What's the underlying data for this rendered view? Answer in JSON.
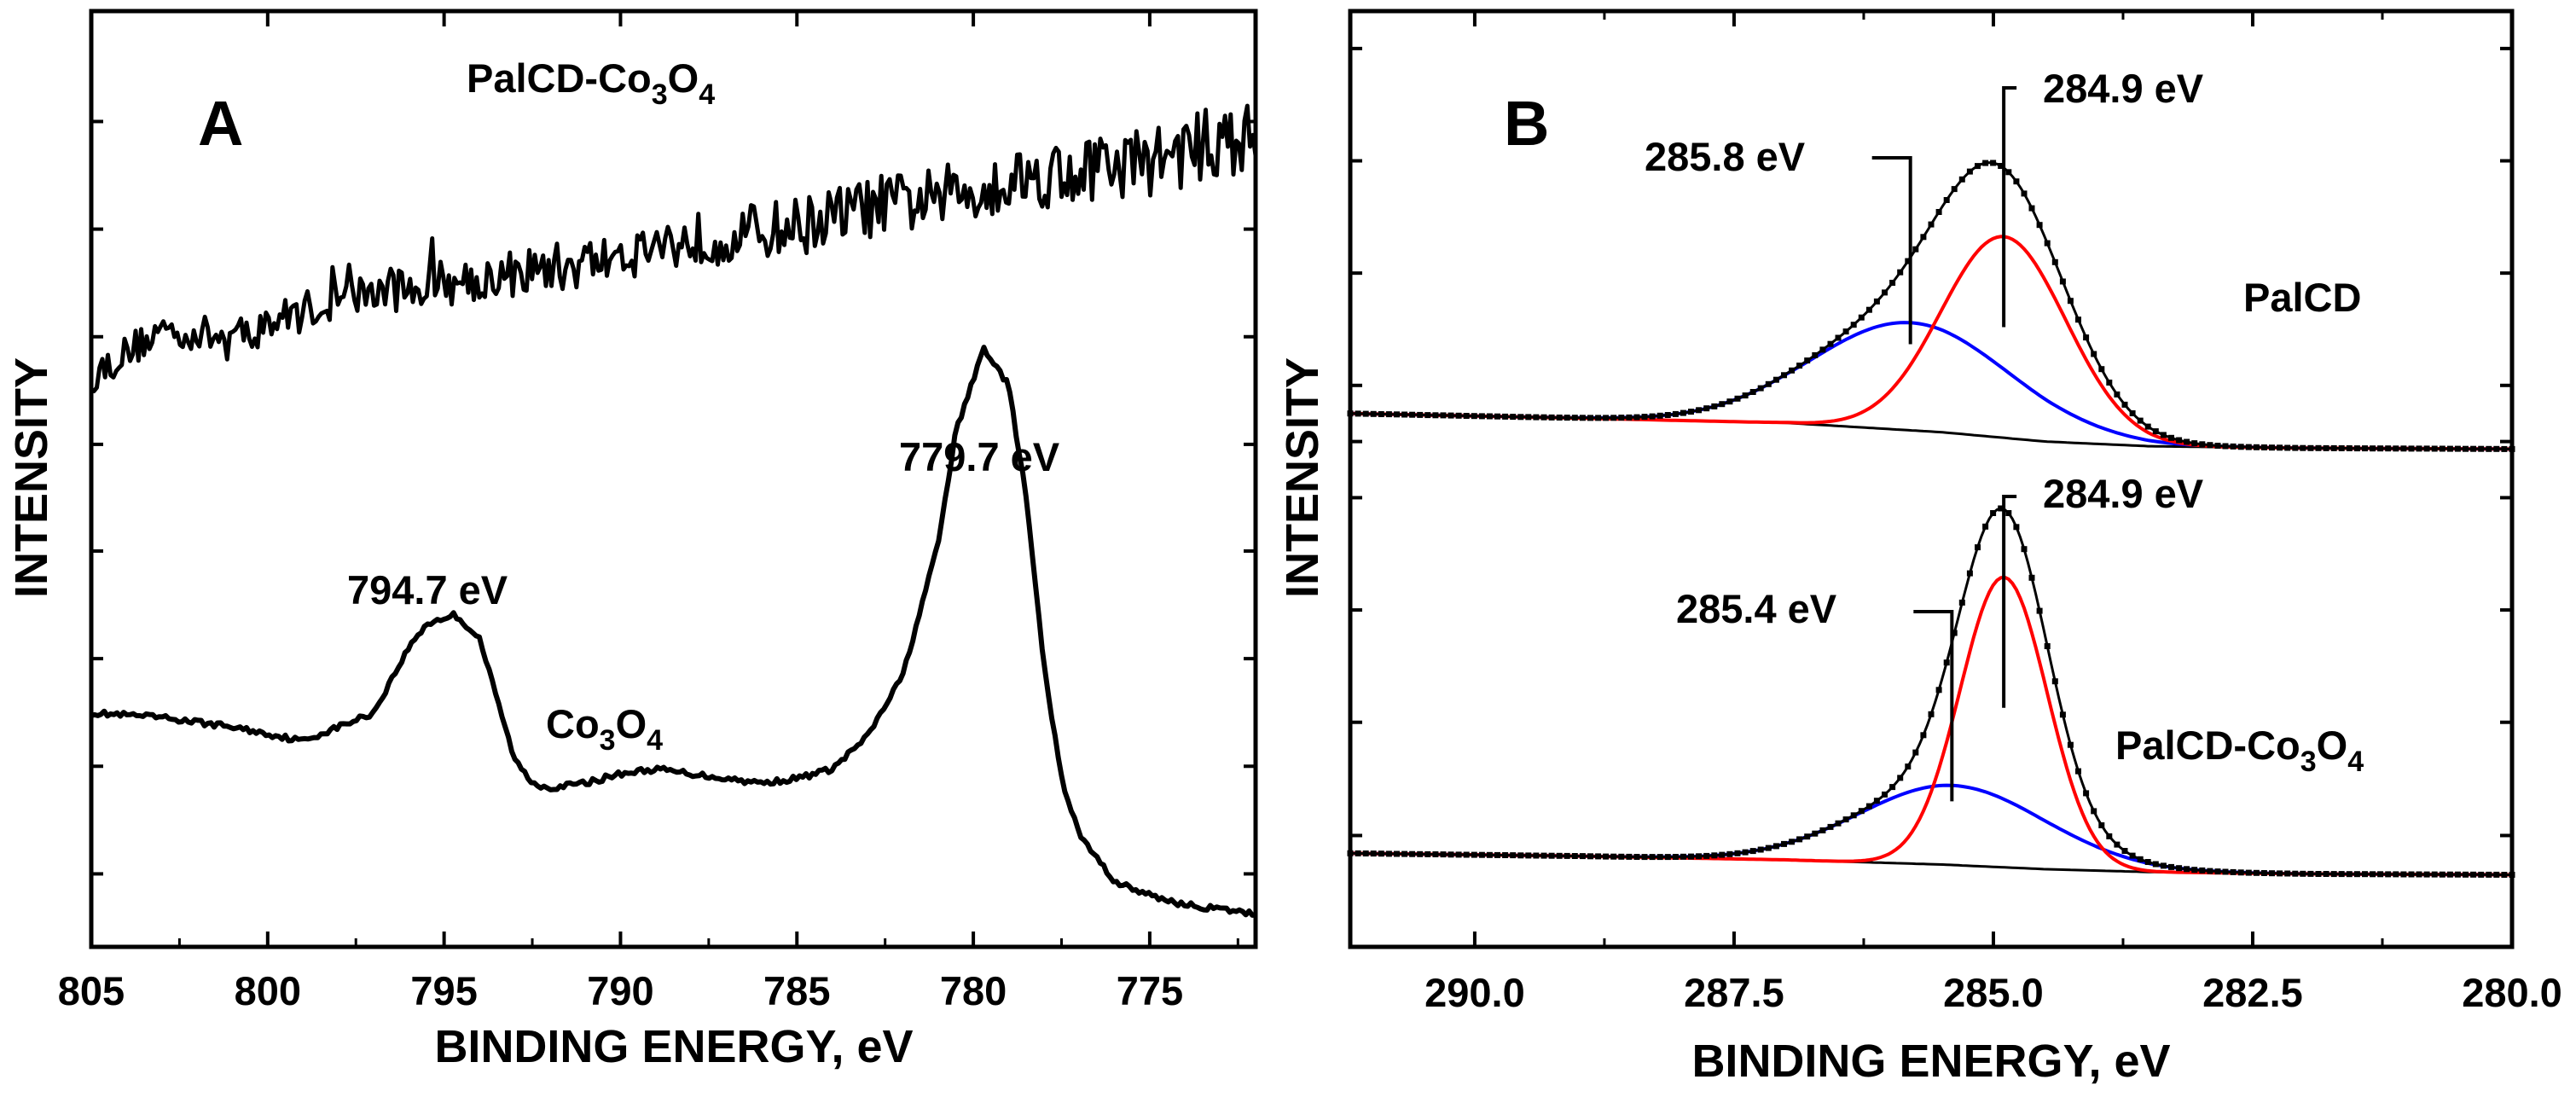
{
  "chart_data": [
    {
      "panel": "A",
      "type": "line",
      "xlabel": "BINDING ENERGY, eV",
      "ylabel": "INTENSITY",
      "xlim": [
        805,
        772
      ],
      "ylim": [
        0,
        1
      ],
      "x_direction": "reversed",
      "xticks": [
        805,
        800,
        795,
        790,
        785,
        780,
        775
      ],
      "xtick_labels": [
        "805",
        "800",
        "795",
        "790",
        "785",
        "780",
        "775"
      ],
      "series": [
        {
          "name": "PalCD-Co3O4",
          "label_parts": [
            "PalCD-Co",
            "3",
            "O",
            "4"
          ],
          "color": "#000000",
          "noisy": true,
          "x": [
            805,
            803,
            801,
            799,
            797,
            795,
            793,
            791,
            789,
            787,
            785,
            783,
            781,
            779,
            777,
            775,
            773,
            772
          ],
          "y": [
            0.61,
            0.66,
            0.65,
            0.68,
            0.7,
            0.71,
            0.72,
            0.73,
            0.75,
            0.76,
            0.77,
            0.79,
            0.8,
            0.82,
            0.83,
            0.84,
            0.86,
            0.86
          ]
        },
        {
          "name": "Co3O4",
          "label_parts": [
            "Co",
            "3",
            "O",
            "4"
          ],
          "color": "#000000",
          "noisy": false,
          "x": [
            805,
            803,
            801,
            799,
            797,
            796,
            795.5,
            794.7,
            794,
            793,
            792.5,
            792,
            791,
            790,
            789,
            788,
            787,
            786,
            785,
            784,
            783,
            782,
            781,
            780.5,
            779.7,
            779,
            778.5,
            778,
            777.5,
            777,
            776,
            775,
            774,
            773,
            772
          ],
          "y": [
            0.25,
            0.245,
            0.235,
            0.22,
            0.25,
            0.32,
            0.345,
            0.355,
            0.33,
            0.2,
            0.175,
            0.17,
            0.175,
            0.185,
            0.19,
            0.185,
            0.18,
            0.175,
            0.18,
            0.19,
            0.225,
            0.29,
            0.43,
            0.55,
            0.64,
            0.6,
            0.48,
            0.3,
            0.18,
            0.12,
            0.07,
            0.055,
            0.045,
            0.04,
            0.035
          ]
        }
      ],
      "annotations": [
        {
          "text": "794.7 eV",
          "x": 794.7
        },
        {
          "text": "779.7 eV",
          "x": 779.7
        }
      ]
    },
    {
      "panel": "B",
      "type": "line",
      "xlabel": "BINDING ENERGY, eV",
      "ylabel": "INTENSITY",
      "xlim": [
        291.2,
        280.0
      ],
      "ylim": [
        0,
        1
      ],
      "x_direction": "reversed",
      "xticks": [
        290.0,
        287.5,
        285.0,
        282.5,
        280.0
      ],
      "xtick_labels": [
        "290.0",
        "287.5",
        "285.0",
        "282.5",
        "280.0"
      ],
      "spectra": [
        {
          "name": "PalCD",
          "label_parts": [
            "PalCD"
          ],
          "baseline_y": 0.555,
          "baseline": {
            "x": [
              291.2,
              289,
              287,
              285.5,
              284.5,
              283.5,
              282,
              280
            ],
            "y": [
              0.57,
              0.565,
              0.56,
              0.55,
              0.54,
              0.535,
              0.533,
              0.532
            ]
          },
          "components": [
            {
              "name": "285.8 eV component",
              "center": 285.8,
              "amplitude": 0.115,
              "sigma": 0.95,
              "color": "#0000ff"
            },
            {
              "name": "284.9 eV component",
              "center": 284.9,
              "amplitude": 0.215,
              "sigma": 0.6,
              "color": "#ff0000"
            }
          ],
          "envelope": {
            "name": "Envelope",
            "color": "#000000",
            "marker": "square"
          },
          "peak_labels": [
            {
              "text": "285.8 eV",
              "x": 285.8
            },
            {
              "text": "284.9 eV",
              "x": 284.9
            }
          ]
        },
        {
          "name": "PalCD-Co3O4",
          "label_parts": [
            "PalCD-Co",
            "3",
            "O",
            "4"
          ],
          "baseline_y": 0.09,
          "baseline": {
            "x": [
              291.2,
              289,
              287,
              285.5,
              284.5,
              283.5,
              282,
              280
            ],
            "y": [
              0.1,
              0.097,
              0.093,
              0.088,
              0.083,
              0.08,
              0.078,
              0.077
            ]
          },
          "components": [
            {
              "name": "285.4 eV component",
              "center": 285.4,
              "amplitude": 0.085,
              "sigma": 0.9,
              "color": "#0000ff"
            },
            {
              "name": "284.9 eV component",
              "center": 284.9,
              "amplitude": 0.31,
              "sigma": 0.42,
              "color": "#ff0000"
            }
          ],
          "envelope": {
            "name": "Envelope",
            "color": "#000000",
            "marker": "square"
          },
          "peak_labels": [
            {
              "text": "285.4 eV",
              "x": 285.4
            },
            {
              "text": "284.9 eV",
              "x": 284.9
            }
          ]
        }
      ]
    }
  ]
}
